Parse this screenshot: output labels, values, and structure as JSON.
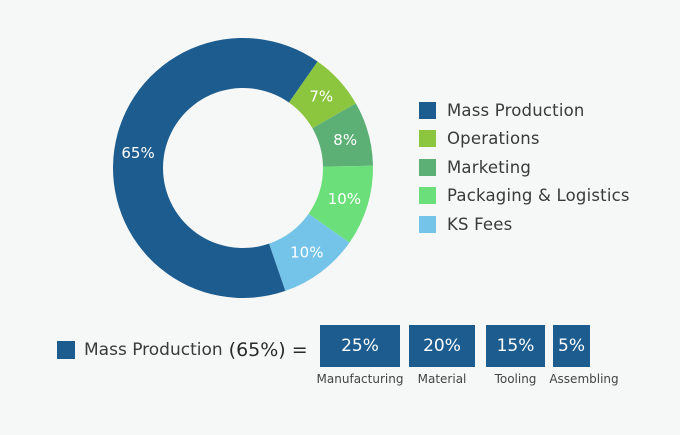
{
  "chart_data": {
    "type": "pie",
    "variant": "donut",
    "categories": [
      "Mass Production",
      "Operations",
      "Marketing",
      "Packaging & Logistics",
      "KS Fees"
    ],
    "values": [
      65,
      7,
      8,
      10,
      10
    ],
    "data_labels": [
      "65%",
      "7%",
      "8%",
      "10%",
      "10%"
    ],
    "colors": [
      "#1d5c8f",
      "#8cc63e",
      "#5cb076",
      "#6be07a",
      "#74c4ea"
    ],
    "legend_position": "right"
  },
  "breakdown": {
    "label": "Mass Production",
    "percent_text": "(65%)",
    "equals": "=",
    "color": "#1d5c8f",
    "items": [
      {
        "value": 25,
        "value_text": "25%",
        "caption": "Manufacturing"
      },
      {
        "value": 20,
        "value_text": "20%",
        "caption": "Material"
      },
      {
        "value": 15,
        "value_text": "15%",
        "caption": "Tooling"
      },
      {
        "value": 5,
        "value_text": "5%",
        "caption": "Assembling"
      }
    ]
  }
}
